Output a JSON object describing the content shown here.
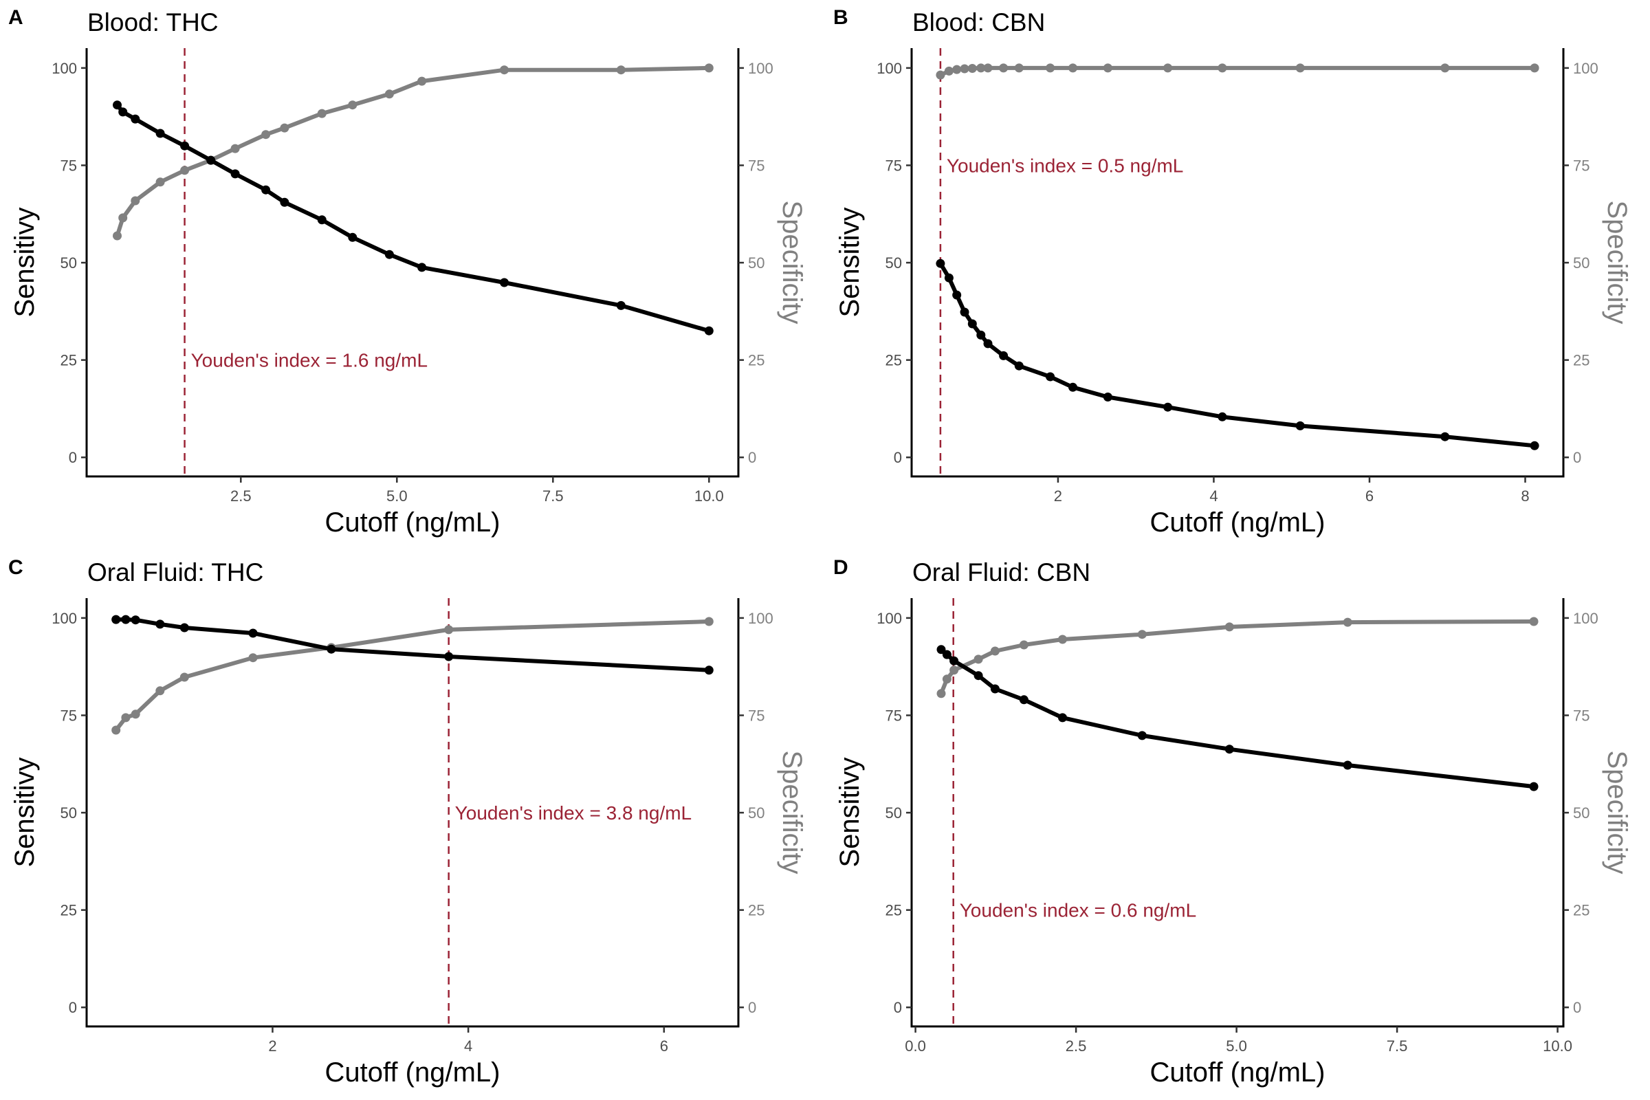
{
  "colors": {
    "sensitivity": "#000000",
    "specificity": "#808080",
    "youden": "#9b2335",
    "tick_left": "#4d4d4d",
    "tick_right": "#808080"
  },
  "chart_data": [
    {
      "type": "line",
      "panel_label": "A",
      "title": "Blood: THC",
      "xlabel": "Cutoff (ng/mL)",
      "ylabel": "Sensitivy",
      "ylabel_right": "Specificity",
      "xlim": [
        0.03,
        10.47
      ],
      "ylim": [
        -4.9,
        105.1
      ],
      "xticks": [
        2.5,
        5.0,
        7.5,
        10.0
      ],
      "xtick_labels": [
        "2.5",
        "5.0",
        "7.5",
        "10.0"
      ],
      "yticks": [
        0,
        25,
        50,
        75,
        100
      ],
      "ytick_labels": [
        "0",
        "25",
        "50",
        "75",
        "100"
      ],
      "grid": false,
      "youden": {
        "x": 1.6,
        "label": "Youden's index = 1.6 ng/mL",
        "label_y": 25
      },
      "x": [
        0.52,
        0.61,
        0.81,
        1.21,
        1.6,
        2.02,
        2.41,
        2.9,
        3.2,
        3.8,
        4.29,
        4.88,
        5.4,
        6.72,
        8.59,
        10.0
      ],
      "series": [
        {
          "name": "Sensitivity",
          "axis": "left",
          "values": [
            90.5,
            88.7,
            86.9,
            83.2,
            80.0,
            76.3,
            72.8,
            68.7,
            65.5,
            61.0,
            56.5,
            52.1,
            48.8,
            44.9,
            39.0,
            32.5
          ]
        },
        {
          "name": "Specificity",
          "axis": "right",
          "values": [
            56.9,
            61.5,
            65.9,
            70.7,
            73.7,
            76.3,
            79.3,
            82.9,
            84.6,
            88.3,
            90.5,
            93.3,
            96.6,
            99.5,
            99.5,
            100.0
          ]
        }
      ]
    },
    {
      "type": "line",
      "panel_label": "B",
      "title": "Blood: CBN",
      "xlabel": "Cutoff (ng/mL)",
      "ylabel": "Sensitivy",
      "ylabel_right": "Specificity",
      "xlim": [
        0.12,
        8.49
      ],
      "ylim": [
        -4.9,
        105.1
      ],
      "xticks": [
        2,
        4,
        6,
        8
      ],
      "xtick_labels": [
        "2",
        "4",
        "6",
        "8"
      ],
      "yticks": [
        0,
        25,
        50,
        75,
        100
      ],
      "ytick_labels": [
        "0",
        "25",
        "50",
        "75",
        "100"
      ],
      "grid": false,
      "youden": {
        "x": 0.49,
        "label": "Youden's index = 0.5 ng/mL",
        "label_y": 75
      },
      "x": [
        0.49,
        0.6,
        0.7,
        0.8,
        0.9,
        1.01,
        1.1,
        1.3,
        1.5,
        1.9,
        2.19,
        2.64,
        3.41,
        4.11,
        5.11,
        6.97,
        8.12
      ],
      "series": [
        {
          "name": "Sensitivity",
          "axis": "left",
          "values": [
            49.8,
            46.1,
            41.7,
            37.3,
            34.3,
            31.4,
            29.2,
            26.1,
            23.5,
            20.7,
            18.0,
            15.5,
            12.9,
            10.4,
            8.1,
            5.3,
            3.0
          ]
        },
        {
          "name": "Specificity",
          "axis": "right",
          "values": [
            98.2,
            99.2,
            99.6,
            99.8,
            99.9,
            100.0,
            100.0,
            100.0,
            100.0,
            100.0,
            100.0,
            100.0,
            100.0,
            100.0,
            100.0,
            100.0,
            100.0
          ]
        }
      ]
    },
    {
      "type": "line",
      "panel_label": "C",
      "title": "Oral Fluid: THC",
      "xlabel": "Cutoff (ng/mL)",
      "ylabel": "Sensitivy",
      "ylabel_right": "Specificity",
      "xlim": [
        0.1,
        6.76
      ],
      "ylim": [
        -4.9,
        105.1
      ],
      "xticks": [
        2,
        4,
        6
      ],
      "xtick_labels": [
        "2",
        "4",
        "6"
      ],
      "yticks": [
        0,
        25,
        50,
        75,
        100
      ],
      "ytick_labels": [
        "0",
        "25",
        "50",
        "75",
        "100"
      ],
      "grid": false,
      "youden": {
        "x": 3.8,
        "label": "Youden's index = 3.8 ng/mL",
        "label_y": 50
      },
      "x": [
        0.4,
        0.5,
        0.6,
        0.85,
        1.1,
        1.8,
        2.6,
        3.8,
        6.46
      ],
      "series": [
        {
          "name": "Sensitivity",
          "axis": "left",
          "values": [
            99.6,
            99.6,
            99.5,
            98.4,
            97.5,
            96.1,
            92.0,
            90.1,
            86.6
          ]
        },
        {
          "name": "Specificity",
          "axis": "right",
          "values": [
            71.2,
            74.4,
            75.3,
            81.3,
            84.8,
            89.8,
            92.4,
            97.0,
            99.1
          ]
        }
      ]
    },
    {
      "type": "line",
      "panel_label": "D",
      "title": "Oral Fluid: CBN",
      "xlabel": "Cutoff (ng/mL)",
      "ylabel": "Sensitivy",
      "ylabel_right": "Specificity",
      "xlim": [
        -0.06,
        10.09
      ],
      "ylim": [
        -4.9,
        105.1
      ],
      "xticks": [
        0.0,
        2.5,
        5.0,
        7.5,
        10.0
      ],
      "xtick_labels": [
        "0.0",
        "2.5",
        "5.0",
        "7.5",
        "10.0"
      ],
      "yticks": [
        0,
        25,
        50,
        75,
        100
      ],
      "ytick_labels": [
        "0",
        "25",
        "50",
        "75",
        "100"
      ],
      "grid": false,
      "youden": {
        "x": 0.59,
        "label": "Youden's index = 0.6 ng/mL",
        "label_y": 25
      },
      "x": [
        0.4,
        0.49,
        0.6,
        0.98,
        1.24,
        1.69,
        2.29,
        3.53,
        4.89,
        6.73,
        9.63
      ],
      "series": [
        {
          "name": "Sensitivity",
          "axis": "left",
          "values": [
            91.9,
            90.6,
            89.0,
            85.2,
            81.8,
            79.0,
            74.4,
            69.8,
            66.3,
            62.2,
            56.7
          ]
        },
        {
          "name": "Specificity",
          "axis": "right",
          "values": [
            80.6,
            84.3,
            86.6,
            89.4,
            91.5,
            93.1,
            94.5,
            95.8,
            97.7,
            98.9,
            99.1
          ]
        }
      ]
    }
  ]
}
